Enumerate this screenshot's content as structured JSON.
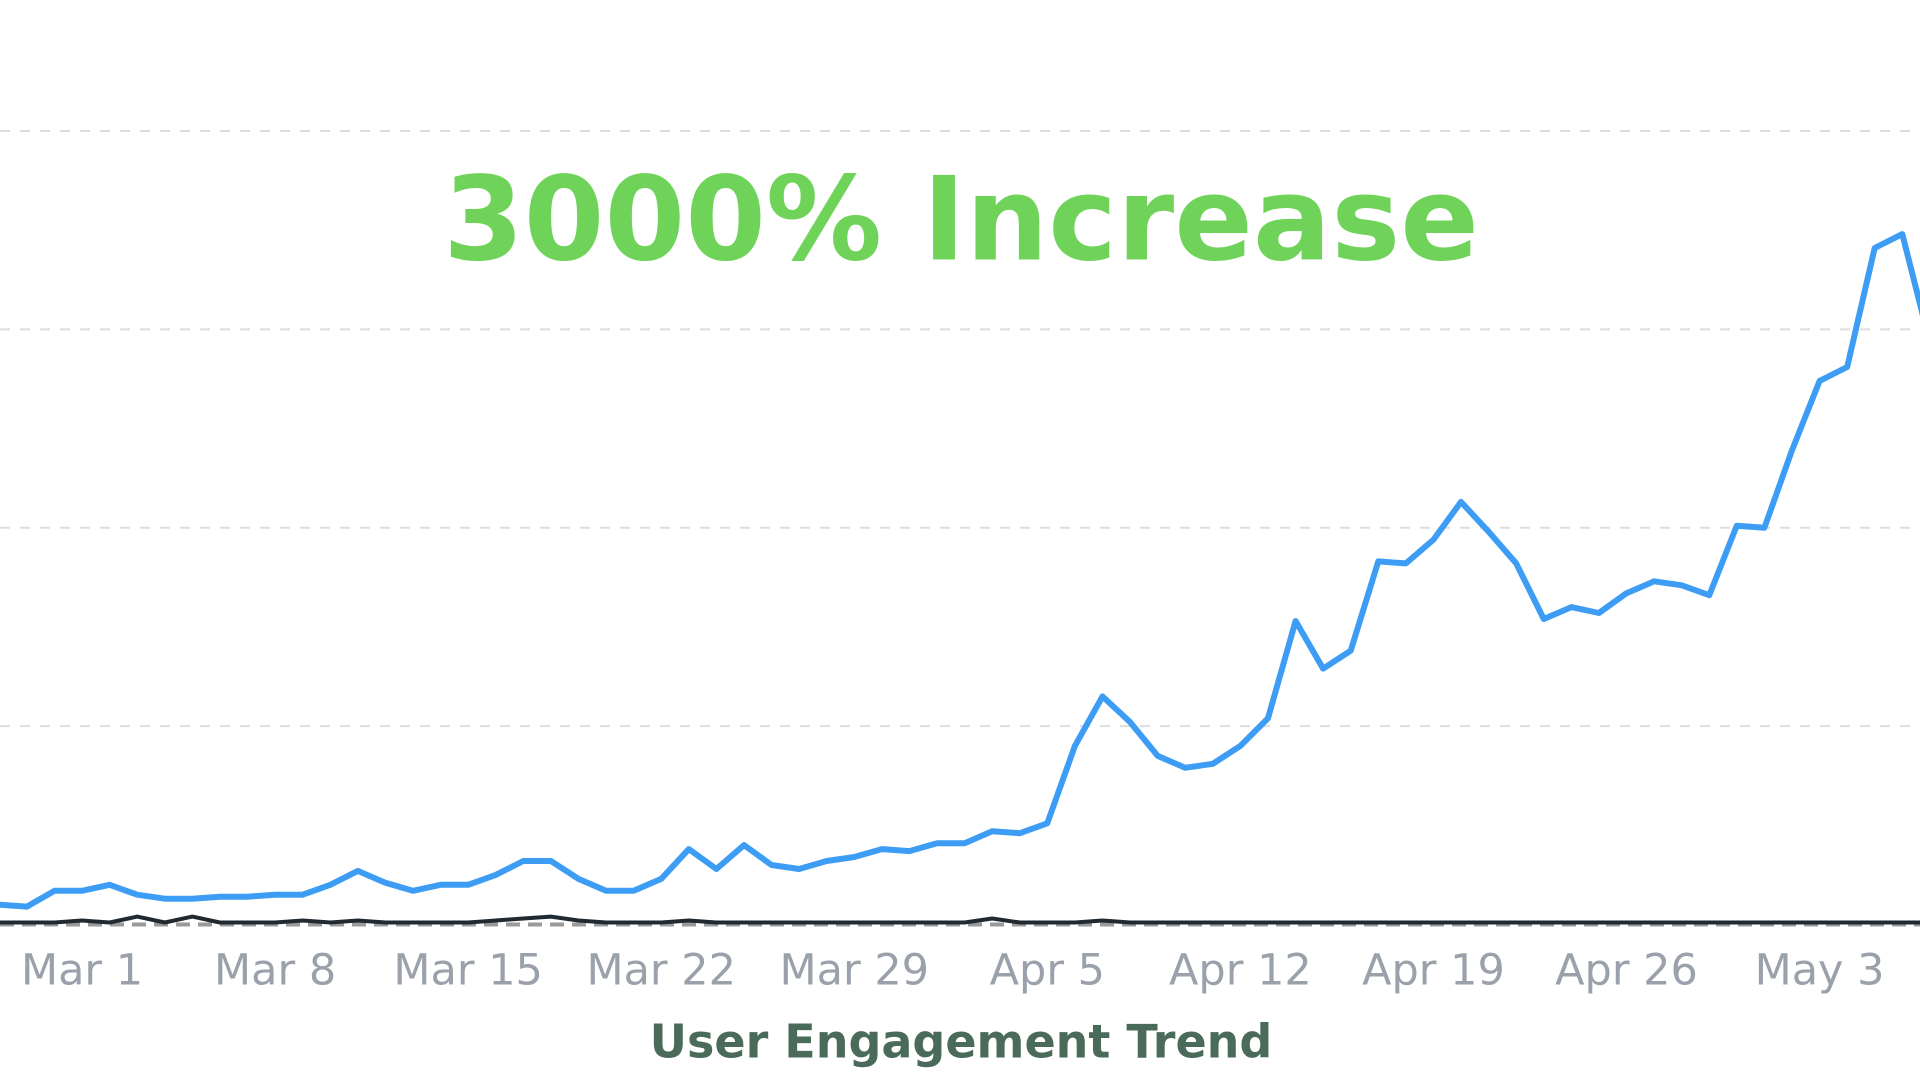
{
  "chart_data": {
    "type": "line",
    "title": "3000% Increase",
    "xlabel": "User Engagement Trend",
    "categories": [
      null,
      null,
      null,
      "Mar 1",
      null,
      null,
      null,
      null,
      null,
      null,
      "Mar 8",
      null,
      null,
      null,
      null,
      null,
      null,
      "Mar 15",
      null,
      null,
      null,
      null,
      null,
      null,
      "Mar 22",
      null,
      null,
      null,
      null,
      null,
      null,
      "Mar 29",
      null,
      null,
      null,
      null,
      null,
      null,
      "Apr 5",
      null,
      null,
      null,
      null,
      null,
      null,
      "Apr 12",
      null,
      null,
      null,
      null,
      null,
      null,
      "Apr 19",
      null,
      null,
      null,
      null,
      null,
      null,
      "Apr 26",
      null,
      null,
      null,
      null,
      null,
      null,
      "May 3",
      null,
      null,
      null,
      null
    ],
    "series": [
      {
        "color": "#3d9df5",
        "values": [
          10,
          9,
          17,
          17,
          20,
          15,
          13,
          13,
          14,
          14,
          15,
          15,
          20,
          27,
          21,
          17,
          20,
          20,
          25,
          32,
          32,
          23,
          17,
          17,
          23,
          38,
          28,
          40,
          30,
          28,
          32,
          34,
          38,
          37,
          41,
          41,
          47,
          46,
          51,
          90,
          115,
          102,
          85,
          79,
          81,
          90,
          104,
          153,
          129,
          138,
          183,
          182,
          194,
          213,
          198,
          182,
          154,
          160,
          157,
          167,
          173,
          171,
          166,
          201,
          200,
          239,
          274,
          281,
          341,
          348,
          293
        ]
      },
      {
        "color": "#1f2a33",
        "values": [
          1,
          1,
          1,
          2,
          1,
          4,
          1,
          4,
          1,
          1,
          1,
          2,
          1,
          2,
          1,
          1,
          1,
          1,
          2,
          3,
          4,
          2,
          1,
          1,
          1,
          2,
          1,
          1,
          1,
          1,
          1,
          1,
          1,
          1,
          1,
          1,
          3,
          1,
          1,
          1,
          2,
          1,
          1,
          1,
          1,
          1,
          1,
          1,
          1,
          1,
          1,
          1,
          1,
          1,
          1,
          1,
          1,
          1,
          1,
          1,
          1,
          1,
          1,
          1,
          1,
          1,
          1,
          1,
          1,
          1,
          1
        ]
      }
    ],
    "ylim": [
      0,
      466
    ],
    "yticks": [
      0,
      100,
      200,
      300,
      400
    ],
    "grid": true
  }
}
